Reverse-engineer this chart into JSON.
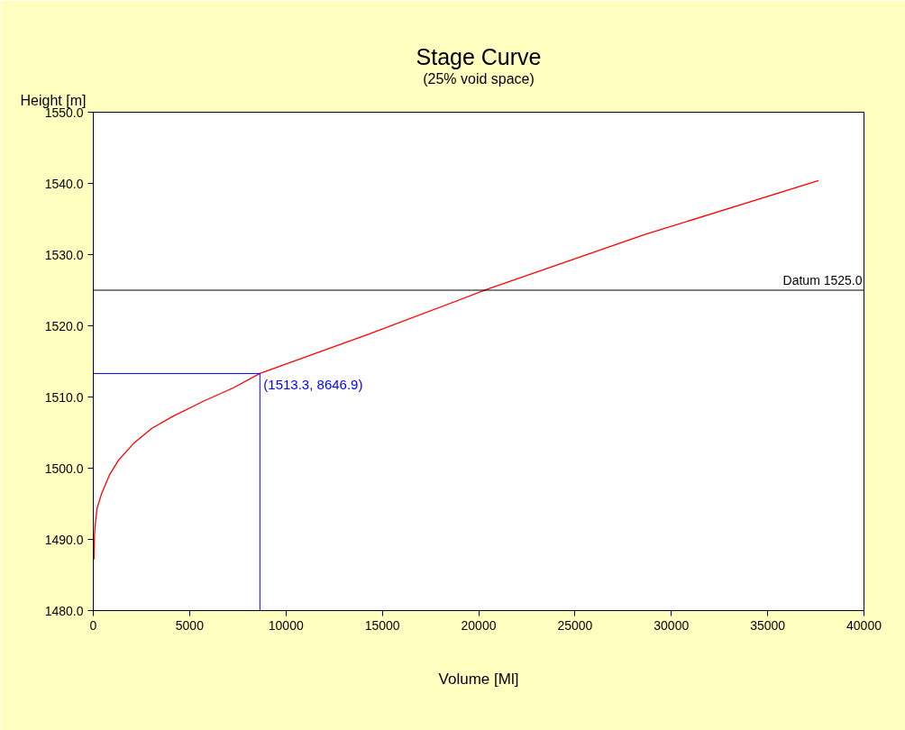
{
  "chart_data": {
    "type": "line",
    "title": "Stage Curve",
    "subtitle": "(25% void space)",
    "xlabel": "Volume [Ml]",
    "ylabel": "Height [m]",
    "xlim": [
      0,
      40000
    ],
    "xticks": [
      0,
      5000,
      10000,
      15000,
      20000,
      25000,
      30000,
      35000,
      40000
    ],
    "ylim": [
      1480,
      1550
    ],
    "yticks": [
      {
        "value": 1480,
        "label": "1480.0"
      },
      {
        "value": 1490,
        "label": "1490.0"
      },
      {
        "value": 1500,
        "label": "1500.0"
      },
      {
        "value": 1510,
        "label": "1510.0"
      },
      {
        "value": 1520,
        "label": "1520.0"
      },
      {
        "value": 1530,
        "label": "1530.0"
      },
      {
        "value": 1540,
        "label": "1540.0"
      },
      {
        "value": 1550,
        "label": "1550.0"
      }
    ],
    "grid": false,
    "series": [
      {
        "color": "#ff0000",
        "x": [
          40,
          60,
          110,
          200,
          440,
          830,
          1300,
          2100,
          3040,
          4140,
          5710,
          7280,
          8647,
          14280,
          20420,
          28600,
          37640
        ],
        "values": [
          1487.2,
          1490.6,
          1492.3,
          1494.4,
          1496.5,
          1499.0,
          1501.1,
          1503.5,
          1505.6,
          1507.3,
          1509.4,
          1511.3,
          1513.3,
          1518.8,
          1525.1,
          1532.8,
          1540.4
        ]
      }
    ],
    "ref_lines": [
      {
        "axis": "y",
        "value": 1525,
        "label": "Datum 1525.0",
        "color": "#000000"
      }
    ],
    "annotations": [
      {
        "text": "(1513.3, 8646.9)",
        "x": 8646.9,
        "y": 1513.3
      }
    ]
  }
}
